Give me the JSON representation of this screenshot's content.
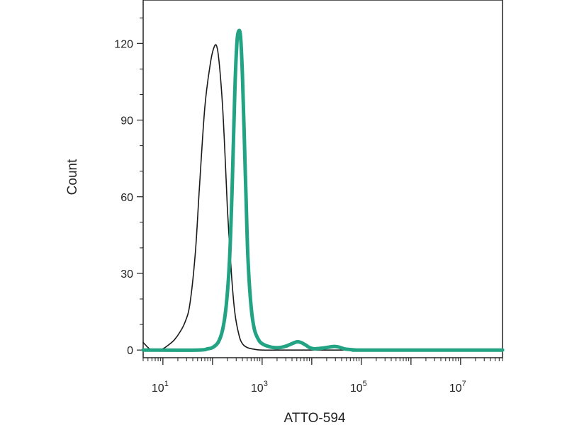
{
  "chart_data": {
    "type": "line",
    "title": "",
    "xlabel": "ATTO-594",
    "ylabel": "Count",
    "x_scale": "log10",
    "xlim": [
      4,
      70000000
    ],
    "ylim": [
      -3,
      137
    ],
    "grid": false,
    "legend": "none",
    "x_ticks": [
      {
        "base": "10",
        "exp": "1",
        "value": 10
      },
      {
        "base": "10",
        "exp": "3",
        "value": 1000
      },
      {
        "base": "10",
        "exp": "5",
        "value": 100000
      },
      {
        "base": "10",
        "exp": "7",
        "value": 10000000
      }
    ],
    "y_ticks": [
      {
        "label": "0",
        "value": 0
      },
      {
        "label": "30",
        "value": 30
      },
      {
        "label": "60",
        "value": 60
      },
      {
        "label": "90",
        "value": 90
      },
      {
        "label": "120",
        "value": 120
      }
    ],
    "series": [
      {
        "color": "#1a1a1a",
        "x": [
          4,
          5,
          6,
          8,
          10,
          13,
          17,
          22,
          28,
          35,
          45,
          55,
          70,
          90,
          110,
          125,
          140,
          160,
          180,
          200,
          240,
          280,
          340,
          400,
          500,
          700,
          1000,
          3000,
          100000,
          70000000
        ],
        "y": [
          3,
          1,
          0,
          0,
          0.5,
          2,
          4,
          7,
          11,
          18,
          38,
          65,
          95,
          112,
          119,
          118,
          110,
          95,
          75,
          55,
          30,
          15,
          6,
          2.5,
          1,
          0.3,
          0,
          0,
          0,
          0
        ]
      },
      {
        "color": "#22a383",
        "x": [
          4,
          50,
          80,
          100,
          130,
          160,
          190,
          220,
          250,
          280,
          310,
          340,
          370,
          400,
          430,
          470,
          520,
          600,
          700,
          850,
          1000,
          1300,
          1700,
          2300,
          3000,
          4000,
          5000,
          6000,
          7500,
          9000,
          11000,
          14000,
          20000,
          28000,
          35000,
          45000,
          60000,
          80000,
          120000,
          70000000
        ],
        "y": [
          0,
          0,
          0.5,
          1,
          3,
          8,
          18,
          35,
          65,
          100,
          120,
          125,
          122,
          108,
          88,
          62,
          35,
          17,
          8,
          4,
          2.5,
          1.5,
          1,
          1,
          1.5,
          2.5,
          3.2,
          3,
          2,
          1,
          0.5,
          0.6,
          1,
          1.4,
          1.2,
          0.5,
          0.2,
          0,
          0,
          0
        ]
      }
    ]
  }
}
